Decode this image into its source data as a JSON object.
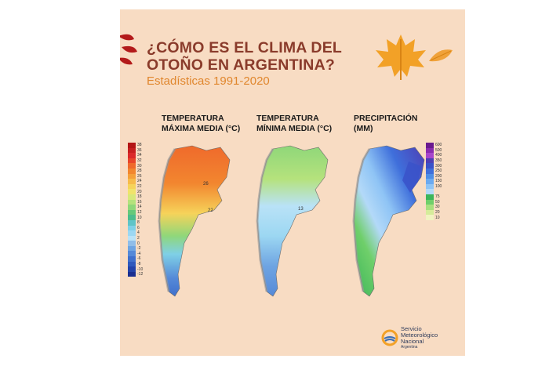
{
  "title_line1": "¿CÓMO ES EL CLIMA DEL",
  "title_line2": "OTOÑO EN ARGENTINA?",
  "subtitle": "Estadísticas 1991-2020",
  "maps": {
    "max": {
      "label_line1": "TEMPERATURA",
      "label_line2": "MÁXIMA MEDIA (°C)"
    },
    "min": {
      "label_line1": "TEMPERATURA",
      "label_line2": "MÍNIMA MEDIA (°C)"
    },
    "pre": {
      "label_line1": "PRECIPITACIÓN",
      "label_line2": "(MM)"
    }
  },
  "legend_temp": [
    {
      "label": "38",
      "color": "#b31616"
    },
    {
      "label": "36",
      "color": "#c71f1f"
    },
    {
      "label": "34",
      "color": "#db2a2a"
    },
    {
      "label": "32",
      "color": "#e8452a"
    },
    {
      "label": "30",
      "color": "#ef6a2c"
    },
    {
      "label": "28",
      "color": "#f2862f"
    },
    {
      "label": "26",
      "color": "#f5a03a"
    },
    {
      "label": "24",
      "color": "#f7bb4a"
    },
    {
      "label": "22",
      "color": "#f6d35a"
    },
    {
      "label": "20",
      "color": "#f0e36b"
    },
    {
      "label": "18",
      "color": "#d8e87a"
    },
    {
      "label": "16",
      "color": "#b5e27c"
    },
    {
      "label": "14",
      "color": "#8fd77a"
    },
    {
      "label": "12",
      "color": "#66c97a"
    },
    {
      "label": "10",
      "color": "#4dbd8e"
    },
    {
      "label": "8",
      "color": "#5fc4c7"
    },
    {
      "label": "6",
      "color": "#7fd0e6"
    },
    {
      "label": "4",
      "color": "#9cd7f2"
    },
    {
      "label": "2",
      "color": "#b9e2f7"
    },
    {
      "label": "0",
      "color": "#8fbde9"
    },
    {
      "label": "-2",
      "color": "#6ea4e2"
    },
    {
      "label": "-4",
      "color": "#5589d8"
    },
    {
      "label": "-6",
      "color": "#4070cc"
    },
    {
      "label": "-8",
      "color": "#2f59bd"
    },
    {
      "label": "-10",
      "color": "#2343aa"
    },
    {
      "label": "-12",
      "color": "#1a2f90"
    }
  ],
  "legend_precip": [
    {
      "label": "600",
      "color": "#6a1a8f"
    },
    {
      "label": "500",
      "color": "#8a2bb0"
    },
    {
      "label": "400",
      "color": "#a646cc"
    },
    {
      "label": "350",
      "color": "#4d3fb5"
    },
    {
      "label": "300",
      "color": "#3a52c9"
    },
    {
      "label": "250",
      "color": "#3f6fdb"
    },
    {
      "label": "200",
      "color": "#4e8ee6"
    },
    {
      "label": "150",
      "color": "#6baaf0"
    },
    {
      "label": "100",
      "color": "#8fc4f5"
    },
    {
      "label": "",
      "color": "#b3d9f8"
    },
    {
      "label": "75",
      "color": "#3cb55a"
    },
    {
      "label": "50",
      "color": "#6fcf6a"
    },
    {
      "label": "30",
      "color": "#a7e07e"
    },
    {
      "label": "20",
      "color": "#d5ec9a"
    },
    {
      "label": "10",
      "color": "#f0f3c0"
    }
  ],
  "max_map_values": [
    "26",
    "22"
  ],
  "min_map_values": [
    "13"
  ],
  "logo": {
    "line1": "Servicio",
    "line2": "Meteorológico",
    "line3": "Nacional",
    "line4": "Argentina"
  }
}
